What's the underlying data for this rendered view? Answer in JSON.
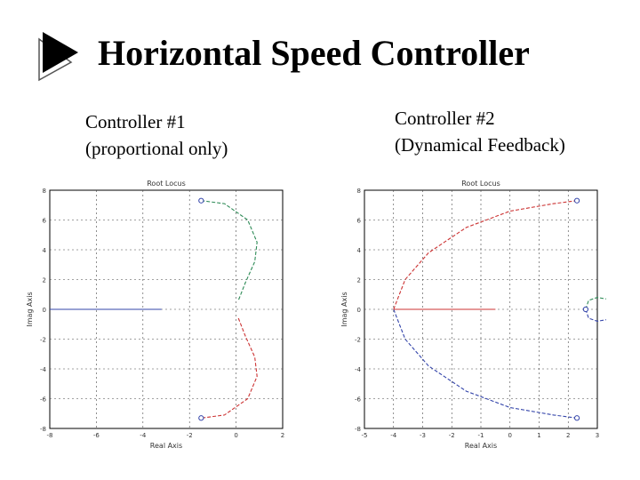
{
  "slide": {
    "title": "Horizontal Speed Controller",
    "left_caption": [
      "Controller #1",
      "(proportional only)"
    ],
    "right_caption": [
      "Controller #2",
      "(Dynamical Feedback)"
    ]
  },
  "colors": {
    "upper_branch": "#2e8b57",
    "lower_branch": "#cc3333",
    "real_axis_locus": "#3344aa",
    "marker": "#3344aa",
    "grid": "#444444"
  },
  "chart_data": [
    {
      "type": "line",
      "title": "Root Locus",
      "xlabel": "Real Axis",
      "ylabel": "Imag Axis",
      "xlim": [
        -8,
        2
      ],
      "ylim": [
        -8,
        8
      ],
      "xticks": [
        -8,
        -6,
        -4,
        -2,
        0,
        2
      ],
      "yticks": [
        -8,
        -6,
        -4,
        -2,
        0,
        2,
        4,
        6,
        8
      ],
      "x_tick_labels": [
        "-8",
        "-6",
        "-4",
        "-2",
        "0",
        "2"
      ],
      "y_tick_labels": [
        "-8",
        "-6",
        "-4",
        "-2",
        "0",
        "2",
        "4",
        "6",
        "8"
      ],
      "grid": true,
      "series": [
        {
          "color": "#2e8b57",
          "style": "dashed",
          "x": [
            -1.5,
            -0.5,
            0.5,
            0.9,
            0.8,
            0.4,
            0.1
          ],
          "y": [
            7.3,
            7.1,
            6.0,
            4.5,
            3.2,
            1.8,
            0.6
          ]
        },
        {
          "color": "#cc3333",
          "style": "dashed",
          "x": [
            0.1,
            0.4,
            0.8,
            0.9,
            0.5,
            -0.5,
            -1.5
          ],
          "y": [
            -0.6,
            -1.8,
            -3.2,
            -4.5,
            -6.0,
            -7.1,
            -7.3
          ]
        },
        {
          "color": "#3344aa",
          "style": "solid",
          "x": [
            -8,
            -3.2
          ],
          "y": [
            0,
            0
          ]
        }
      ],
      "markers": [
        {
          "x": -1.5,
          "y": 7.3
        },
        {
          "x": -1.5,
          "y": -7.3
        }
      ]
    },
    {
      "type": "line",
      "title": "Root Locus",
      "xlabel": "Real Axis",
      "ylabel": "Imag Axis",
      "xlim": [
        -5,
        3
      ],
      "ylim": [
        -8,
        8
      ],
      "xticks": [
        -5,
        -4,
        -3,
        -2,
        -1,
        0,
        1,
        2,
        3
      ],
      "yticks": [
        -8,
        -6,
        -4,
        -2,
        0,
        2,
        4,
        6,
        8
      ],
      "x_tick_labels": [
        "-5",
        "-4",
        "-3",
        "-2",
        "-1",
        "0",
        "1",
        "2",
        "3"
      ],
      "y_tick_labels": [
        "-8",
        "-6",
        "-4",
        "-2",
        "0",
        "2",
        "4",
        "6",
        "8"
      ],
      "grid": true,
      "series": [
        {
          "color": "#cc3333",
          "style": "dashed",
          "x": [
            -4.0,
            -3.6,
            -2.8,
            -1.5,
            0.0,
            1.5,
            2.3
          ],
          "y": [
            0,
            2.0,
            3.8,
            5.5,
            6.6,
            7.1,
            7.3
          ]
        },
        {
          "color": "#3344aa",
          "style": "dashed",
          "x": [
            -4.0,
            -3.6,
            -2.8,
            -1.5,
            0.0,
            1.5,
            2.3
          ],
          "y": [
            0,
            -2.0,
            -3.8,
            -5.5,
            -6.6,
            -7.1,
            -7.3
          ]
        },
        {
          "color": "#cc3333",
          "style": "solid",
          "x": [
            -4.0,
            -0.5
          ],
          "y": [
            0,
            0
          ]
        },
        {
          "color": "#2e8b57",
          "style": "dashed",
          "x": [
            2.6,
            2.7,
            3.0,
            3.3
          ],
          "y": [
            0,
            0.6,
            0.8,
            0.7
          ]
        },
        {
          "color": "#3344aa",
          "style": "dashed",
          "x": [
            2.6,
            2.7,
            3.0,
            3.3
          ],
          "y": [
            0,
            -0.6,
            -0.8,
            -0.7
          ]
        }
      ],
      "markers": [
        {
          "x": 2.3,
          "y": 7.3
        },
        {
          "x": 2.3,
          "y": -7.3
        },
        {
          "x": 2.6,
          "y": 0
        }
      ]
    }
  ]
}
